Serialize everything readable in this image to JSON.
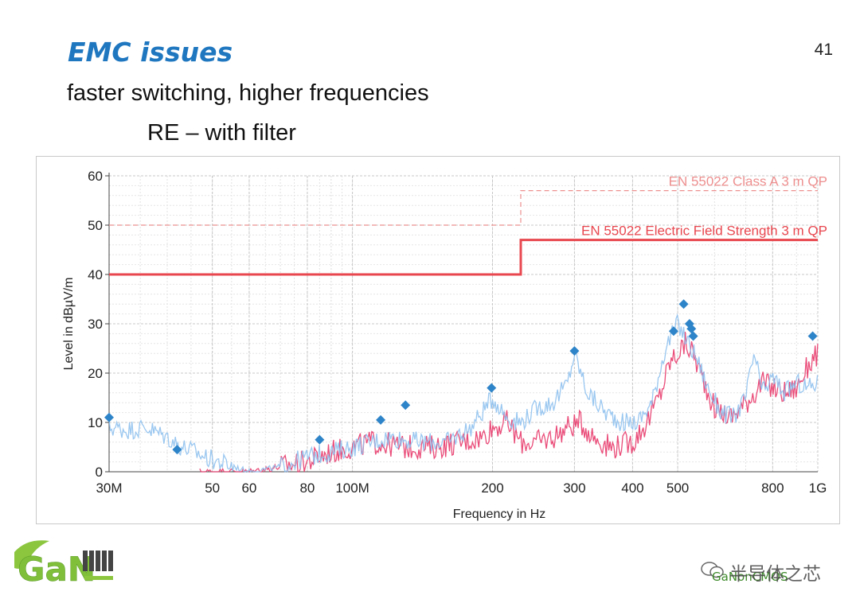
{
  "slide": {
    "title": "EMC issues",
    "number": "41",
    "subtitle": "faster switching, higher frequencies",
    "sub_subtitle": "RE – with filter"
  },
  "logo": {
    "text": "GaN"
  },
  "watermark": {
    "cn": "半导体之芯",
    "en": "GaNonCMOS"
  },
  "colors": {
    "title": "#1f77c0",
    "limit": "#e8474f",
    "limit_dashed": "#ee8f8f",
    "trace_pink": "#e8386a",
    "trace_blue": "#8fc1ee",
    "marker": "#2e84c8",
    "logo_green": "#8cc63f"
  },
  "chart_data": {
    "type": "line",
    "xscale": "log",
    "xlabel": "Frequency in Hz",
    "ylabel": "Level in dBµV/m",
    "xlim": [
      30000000,
      1000000000
    ],
    "ylim": [
      0,
      60
    ],
    "grid": true,
    "x_ticks": [
      {
        "value": 30000000,
        "label": "30M"
      },
      {
        "value": 50000000,
        "label": "50"
      },
      {
        "value": 60000000,
        "label": "60"
      },
      {
        "value": 80000000,
        "label": "80"
      },
      {
        "value": 100000000,
        "label": "100M"
      },
      {
        "value": 200000000,
        "label": "200"
      },
      {
        "value": 300000000,
        "label": "300"
      },
      {
        "value": 400000000,
        "label": "400"
      },
      {
        "value": 500000000,
        "label": "500"
      },
      {
        "value": 800000000,
        "label": "800"
      },
      {
        "value": 1000000000,
        "label": "1G"
      }
    ],
    "y_ticks": [
      0,
      10,
      20,
      30,
      40,
      50,
      60
    ],
    "limits": [
      {
        "name": "EN 55022 Class A 3 m QP",
        "style": "dashed",
        "segments": [
          {
            "x0": 30000000,
            "x1": 230000000,
            "y": 50
          },
          {
            "x0": 230000000,
            "x1": 1000000000,
            "y": 57
          }
        ]
      },
      {
        "name": "EN 55022 Electric Field Strength 3 m QP",
        "style": "solid",
        "segments": [
          {
            "x0": 30000000,
            "x1": 230000000,
            "y": 40
          },
          {
            "x0": 230000000,
            "x1": 1000000000,
            "y": 47
          }
        ]
      }
    ],
    "series": [
      {
        "name": "pink trace",
        "x": [
          47000000,
          60000000,
          70000000,
          80000000,
          90000000,
          100000000,
          110000000,
          130000000,
          150000000,
          170000000,
          190000000,
          200000000,
          215000000,
          230000000,
          250000000,
          270000000,
          290000000,
          310000000,
          330000000,
          360000000,
          400000000,
          430000000,
          460000000,
          480000000,
          500000000,
          520000000,
          540000000,
          560000000,
          600000000,
          650000000,
          700000000,
          760000000,
          800000000,
          850000000,
          900000000,
          960000000,
          1000000000
        ],
        "y": [
          0,
          0,
          1,
          2,
          4,
          5,
          6,
          5,
          5,
          6,
          7,
          9,
          10,
          6,
          6,
          7,
          9,
          10,
          7,
          5,
          6,
          10,
          16,
          22,
          24,
          26,
          24,
          20,
          13,
          11,
          14,
          18,
          17,
          16,
          17,
          22,
          24
        ]
      },
      {
        "name": "blue trace",
        "x": [
          30000000,
          33000000,
          36000000,
          40000000,
          43000000,
          46000000,
          48000000,
          60000000,
          70000000,
          80000000,
          90000000,
          100000000,
          120000000,
          140000000,
          160000000,
          180000000,
          200000000,
          215000000,
          230000000,
          250000000,
          270000000,
          290000000,
          300000000,
          320000000,
          350000000,
          380000000,
          410000000,
          440000000,
          470000000,
          500000000,
          520000000,
          550000000,
          580000000,
          620000000,
          660000000,
          700000000,
          730000000,
          760000000,
          800000000,
          850000000,
          900000000,
          950000000,
          1000000000
        ],
        "y": [
          9,
          8.5,
          9,
          7,
          5,
          4,
          3,
          0,
          1,
          3,
          4,
          5,
          7,
          6,
          6,
          9,
          15,
          11,
          10,
          13,
          14,
          18,
          24,
          16,
          12,
          10,
          10,
          14,
          25,
          30,
          27,
          23,
          17,
          12,
          11,
          15,
          24,
          16,
          19,
          16,
          18,
          17,
          18
        ]
      }
    ],
    "markers": [
      {
        "x": 30000000,
        "y": 11
      },
      {
        "x": 42000000,
        "y": 4.5
      },
      {
        "x": 85000000,
        "y": 6.5
      },
      {
        "x": 115000000,
        "y": 10.5
      },
      {
        "x": 130000000,
        "y": 13.5
      },
      {
        "x": 199000000,
        "y": 17
      },
      {
        "x": 300000000,
        "y": 24.5
      },
      {
        "x": 490000000,
        "y": 28.5
      },
      {
        "x": 515000000,
        "y": 34
      },
      {
        "x": 530000000,
        "y": 30
      },
      {
        "x": 535000000,
        "y": 29
      },
      {
        "x": 540000000,
        "y": 27.5
      },
      {
        "x": 975000000,
        "y": 27.5
      }
    ]
  }
}
